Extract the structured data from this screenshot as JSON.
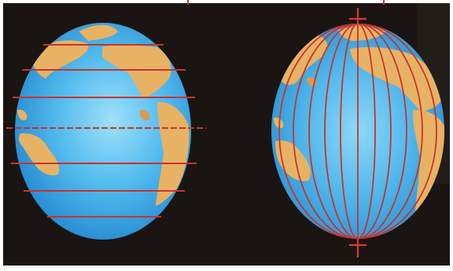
{
  "scene": {
    "description_hidden": "",
    "colors": {
      "background": "#1a1512",
      "ocean_light": "#8fd6f7",
      "ocean_mid": "#49b3ea",
      "ocean_dark": "#1f86cf",
      "land": "#e8b264",
      "grid_line": "#c8332e",
      "frame": "#ffffff"
    },
    "icons": {
      "left_globe": "latitude-globe-icon",
      "right_globe": "longitude-globe-icon"
    }
  }
}
